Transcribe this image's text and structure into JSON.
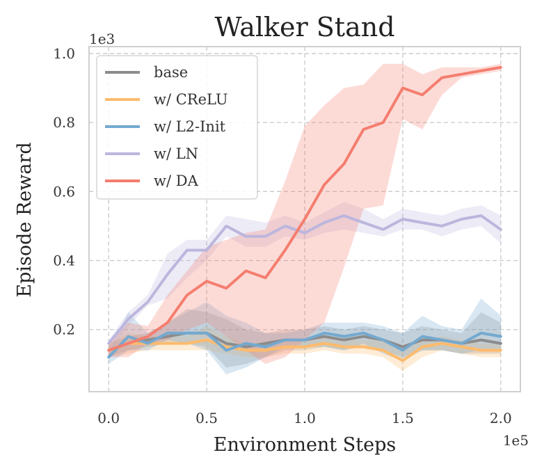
{
  "chart_data": {
    "type": "line",
    "title": "Walker Stand",
    "xlabel": "Environment Steps",
    "ylabel": "Episode Reward",
    "x_offset_label": "1e5",
    "y_offset_label": "1e3",
    "xlim": [
      -0.1,
      2.1
    ],
    "ylim": [
      0.02,
      1.02
    ],
    "xticks": [
      0.0,
      0.5,
      1.0,
      1.5,
      2.0
    ],
    "xtick_labels": [
      "0.0",
      "0.5",
      "1.0",
      "1.5",
      "2.0"
    ],
    "yticks": [
      0.2,
      0.4,
      0.6,
      0.8,
      1.0
    ],
    "ytick_labels": [
      "0.2",
      "0.4",
      "0.6",
      "0.8",
      "1.0"
    ],
    "grid": true,
    "legend_position": "top-left",
    "x": [
      0.0,
      0.1,
      0.2,
      0.3,
      0.4,
      0.5,
      0.6,
      0.7,
      0.8,
      0.9,
      1.0,
      1.1,
      1.2,
      1.3,
      1.4,
      1.5,
      1.6,
      1.7,
      1.8,
      1.9,
      2.0
    ],
    "series": [
      {
        "name": "base",
        "color": "#8c8c8c",
        "values": [
          0.14,
          0.16,
          0.17,
          0.18,
          0.19,
          0.19,
          0.16,
          0.15,
          0.16,
          0.17,
          0.17,
          0.18,
          0.17,
          0.18,
          0.17,
          0.15,
          0.17,
          0.17,
          0.16,
          0.17,
          0.16
        ],
        "lower": [
          0.12,
          0.14,
          0.15,
          0.16,
          0.16,
          0.15,
          0.09,
          0.1,
          0.12,
          0.14,
          0.14,
          0.15,
          0.14,
          0.15,
          0.14,
          0.12,
          0.14,
          0.14,
          0.13,
          0.13,
          0.13
        ],
        "upper": [
          0.16,
          0.18,
          0.19,
          0.22,
          0.26,
          0.25,
          0.23,
          0.2,
          0.19,
          0.2,
          0.2,
          0.21,
          0.2,
          0.21,
          0.2,
          0.19,
          0.21,
          0.2,
          0.19,
          0.25,
          0.22
        ]
      },
      {
        "name": "w/ CReLU",
        "color": "#fdbb6c",
        "values": [
          0.14,
          0.16,
          0.16,
          0.16,
          0.16,
          0.17,
          0.15,
          0.14,
          0.14,
          0.15,
          0.15,
          0.16,
          0.15,
          0.15,
          0.14,
          0.11,
          0.15,
          0.16,
          0.15,
          0.14,
          0.14
        ],
        "lower": [
          0.12,
          0.13,
          0.14,
          0.14,
          0.14,
          0.14,
          0.13,
          0.12,
          0.12,
          0.13,
          0.13,
          0.14,
          0.13,
          0.13,
          0.12,
          0.08,
          0.12,
          0.14,
          0.13,
          0.12,
          0.12
        ],
        "upper": [
          0.16,
          0.19,
          0.18,
          0.18,
          0.18,
          0.21,
          0.18,
          0.16,
          0.16,
          0.17,
          0.17,
          0.18,
          0.17,
          0.17,
          0.17,
          0.14,
          0.17,
          0.18,
          0.17,
          0.16,
          0.16
        ]
      },
      {
        "name": "w/ L2-Init",
        "color": "#74a9cf",
        "values": [
          0.12,
          0.18,
          0.16,
          0.19,
          0.19,
          0.19,
          0.14,
          0.16,
          0.15,
          0.17,
          0.17,
          0.19,
          0.18,
          0.19,
          0.17,
          0.14,
          0.18,
          0.17,
          0.16,
          0.19,
          0.18
        ],
        "lower": [
          0.1,
          0.14,
          0.14,
          0.17,
          0.16,
          0.14,
          0.07,
          0.09,
          0.12,
          0.15,
          0.15,
          0.15,
          0.14,
          0.16,
          0.13,
          0.11,
          0.14,
          0.14,
          0.13,
          0.14,
          0.14
        ],
        "upper": [
          0.14,
          0.25,
          0.19,
          0.22,
          0.25,
          0.28,
          0.24,
          0.22,
          0.19,
          0.19,
          0.2,
          0.22,
          0.22,
          0.22,
          0.21,
          0.19,
          0.24,
          0.21,
          0.2,
          0.29,
          0.24
        ]
      },
      {
        "name": "w/ LN",
        "color": "#bcb6dd",
        "values": [
          0.16,
          0.23,
          0.28,
          0.36,
          0.43,
          0.43,
          0.5,
          0.47,
          0.47,
          0.5,
          0.48,
          0.51,
          0.53,
          0.51,
          0.49,
          0.52,
          0.51,
          0.5,
          0.52,
          0.53,
          0.49
        ],
        "lower": [
          0.13,
          0.21,
          0.27,
          0.29,
          0.35,
          0.4,
          0.47,
          0.44,
          0.44,
          0.47,
          0.46,
          0.48,
          0.49,
          0.48,
          0.47,
          0.49,
          0.49,
          0.47,
          0.49,
          0.5,
          0.45
        ],
        "upper": [
          0.17,
          0.25,
          0.3,
          0.42,
          0.46,
          0.46,
          0.53,
          0.52,
          0.51,
          0.53,
          0.51,
          0.54,
          0.57,
          0.55,
          0.52,
          0.55,
          0.54,
          0.53,
          0.55,
          0.56,
          0.53
        ]
      },
      {
        "name": "w/ DA",
        "color": "#f47e6f",
        "values": [
          0.14,
          0.16,
          0.18,
          0.22,
          0.3,
          0.34,
          0.32,
          0.37,
          0.35,
          0.43,
          0.52,
          0.62,
          0.68,
          0.78,
          0.8,
          0.9,
          0.88,
          0.93,
          0.94,
          0.95,
          0.96
        ],
        "lower": [
          0.12,
          0.12,
          0.16,
          0.17,
          0.2,
          0.22,
          0.18,
          0.14,
          0.1,
          0.12,
          0.17,
          0.22,
          0.38,
          0.55,
          0.56,
          0.81,
          0.78,
          0.88,
          0.93,
          0.94,
          0.95
        ],
        "upper": [
          0.16,
          0.22,
          0.21,
          0.3,
          0.37,
          0.44,
          0.46,
          0.48,
          0.49,
          0.63,
          0.79,
          0.85,
          0.9,
          0.91,
          0.97,
          0.97,
          0.94,
          0.96,
          0.96,
          0.96,
          0.97
        ]
      }
    ]
  }
}
